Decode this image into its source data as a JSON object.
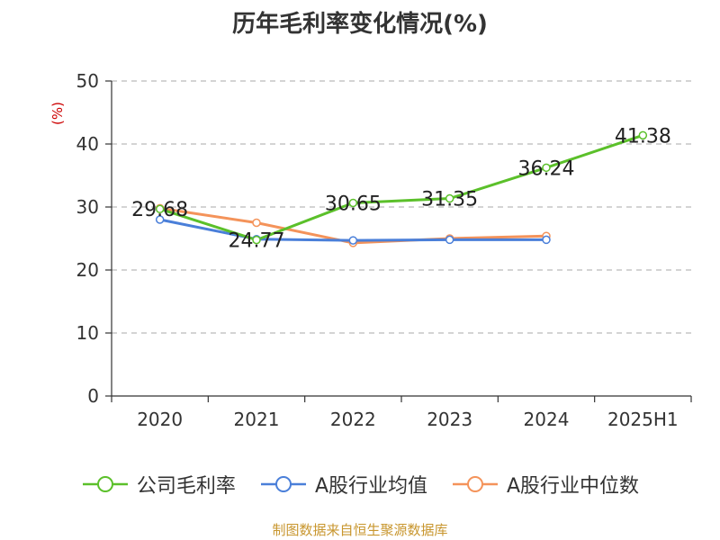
{
  "title": "历年毛利率变化情况(%)",
  "source": "制图数据来自恒生聚源数据库",
  "chart_data": {
    "type": "line",
    "title": "历年毛利率变化情况(%)",
    "xlabel": "",
    "ylabel": "(%)",
    "ylim": [
      0,
      50
    ],
    "yticks": [
      0,
      10,
      20,
      30,
      40,
      50
    ],
    "grid": true,
    "legend_position": "bottom",
    "categories": [
      "2020",
      "2021",
      "2022",
      "2023",
      "2024",
      "2025H1"
    ],
    "series": [
      {
        "name": "公司毛利率",
        "color": "#5bc02a",
        "labeled": true,
        "values": [
          29.68,
          24.77,
          30.65,
          31.35,
          36.24,
          41.38
        ]
      },
      {
        "name": "A股行业均值",
        "color": "#4a7fd9",
        "labeled": false,
        "values": [
          28.0,
          24.9,
          24.7,
          24.8,
          24.8,
          null
        ]
      },
      {
        "name": "A股行业中位数",
        "color": "#f4935a",
        "labeled": false,
        "values": [
          29.8,
          27.5,
          24.3,
          25.0,
          25.4,
          null
        ]
      }
    ]
  }
}
